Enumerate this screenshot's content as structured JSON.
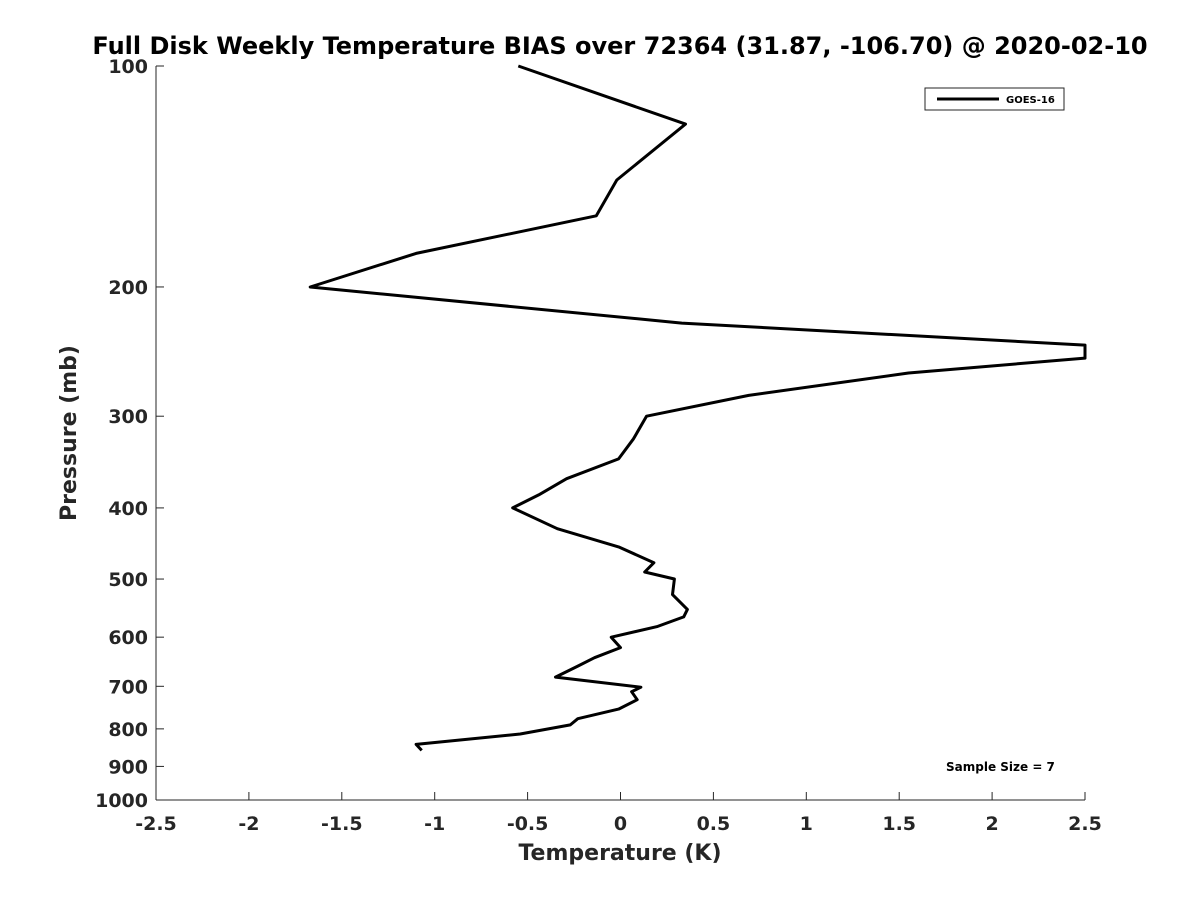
{
  "chart_data": {
    "type": "line",
    "title": "Full Disk Weekly Temperature BIAS over 72364 (31.87, -106.70) @ 2020-02-10",
    "xlabel": "Temperature (K)",
    "ylabel": "Pressure (mb)",
    "xlim": [
      -2.5,
      2.5
    ],
    "ylim": [
      100,
      1000
    ],
    "y_scale": "log",
    "y_reversed": true,
    "grid": false,
    "legend_position": "top-right",
    "x_ticks": [
      -2.5,
      -2,
      -1.5,
      -1,
      -0.5,
      0,
      0.5,
      1,
      1.5,
      2,
      2.5
    ],
    "x_tick_labels": [
      "-2.5",
      "-2",
      "-1.5",
      "-1",
      "-0.5",
      "0",
      "0.5",
      "1",
      "1.5",
      "2",
      "2.5"
    ],
    "y_ticks": [
      100,
      200,
      300,
      400,
      500,
      600,
      700,
      800,
      900,
      1000
    ],
    "y_tick_labels": [
      "100",
      "200",
      "300",
      "400",
      "500",
      "600",
      "700",
      "800",
      "900",
      "1000"
    ],
    "series": [
      {
        "name": "GOES-16",
        "color": "#000000",
        "points": [
          [
            -0.55,
            100
          ],
          [
            0.35,
            120
          ],
          [
            -0.02,
            143
          ],
          [
            -0.13,
            160
          ],
          [
            -1.1,
            180
          ],
          [
            -1.67,
            200
          ],
          [
            0.33,
            224
          ],
          [
            2.5,
            240
          ],
          [
            2.5,
            250
          ],
          [
            1.55,
            262
          ],
          [
            0.69,
            281
          ],
          [
            0.14,
            300
          ],
          [
            0.07,
            322
          ],
          [
            -0.01,
            343
          ],
          [
            -0.29,
            365
          ],
          [
            -0.44,
            384
          ],
          [
            -0.58,
            400
          ],
          [
            -0.34,
            427
          ],
          [
            -0.01,
            452
          ],
          [
            0.18,
            475
          ],
          [
            0.13,
            489
          ],
          [
            0.29,
            500
          ],
          [
            0.28,
            525
          ],
          [
            0.36,
            550
          ],
          [
            0.34,
            563
          ],
          [
            0.2,
            580
          ],
          [
            -0.05,
            600
          ],
          [
            0.0,
            620
          ],
          [
            -0.14,
            640
          ],
          [
            -0.23,
            657
          ],
          [
            -0.35,
            680
          ],
          [
            0.11,
            702
          ],
          [
            0.06,
            712
          ],
          [
            0.09,
            730
          ],
          [
            -0.01,
            752
          ],
          [
            -0.23,
            775
          ],
          [
            -0.27,
            790
          ],
          [
            -0.54,
            813
          ],
          [
            -1.1,
            840
          ],
          [
            -1.07,
            856
          ]
        ]
      }
    ],
    "annotation": "Sample Size = 7"
  }
}
